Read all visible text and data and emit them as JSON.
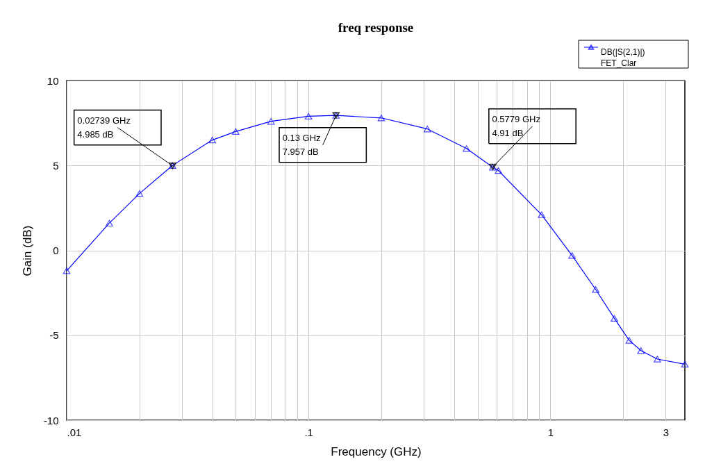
{
  "chart_data": {
    "type": "line",
    "title": "freq response",
    "xlabel": "Frequency (GHz)",
    "ylabel": "Gain (dB)",
    "series": [
      {
        "name": "DB(|S(2,1)|)\nFET_Clar",
        "color": "#0000ff",
        "marker": "triangle",
        "x": [
          0.01,
          0.015,
          0.02,
          0.02739,
          0.04,
          0.05,
          0.07,
          0.1,
          0.13,
          0.2,
          0.31,
          0.45,
          0.5779,
          0.61,
          0.92,
          1.23,
          1.54,
          1.84,
          2.12,
          2.37,
          2.77,
          3.6
        ],
        "values": [
          -1.2,
          1.6,
          3.35,
          5.0,
          6.5,
          7.0,
          7.6,
          7.9,
          7.95,
          7.8,
          7.15,
          6.0,
          4.9,
          4.7,
          2.1,
          -0.3,
          -2.3,
          -4.0,
          -5.3,
          -5.9,
          -6.4,
          -6.7
        ]
      }
    ],
    "annotations": [
      {
        "text": "0.02739 GHz\n4.985 dB",
        "x": 0.02739,
        "y": 4.985
      },
      {
        "text": "0.13 GHz\n7.957 dB",
        "x": 0.13,
        "y": 7.957
      },
      {
        "text": "0.5779 GHz\n4.91 dB",
        "x": 0.5779,
        "y": 4.91
      }
    ],
    "log": "x",
    "xlim": [
      0.01,
      3.6
    ],
    "ylim": [
      -10,
      10
    ],
    "xticks": [
      {
        "value": 0.01,
        "label": ".01"
      },
      {
        "value": 0.02,
        "label": null
      },
      {
        "value": 0.03,
        "label": null
      },
      {
        "value": 0.04,
        "label": null
      },
      {
        "value": 0.05,
        "label": null
      },
      {
        "value": 0.06,
        "label": null
      },
      {
        "value": 0.07,
        "label": null
      },
      {
        "value": 0.08,
        "label": null
      },
      {
        "value": 0.09,
        "label": null
      },
      {
        "value": 0.1,
        "label": ".1"
      },
      {
        "value": 0.2,
        "label": null
      },
      {
        "value": 0.3,
        "label": null
      },
      {
        "value": 0.4,
        "label": null
      },
      {
        "value": 0.5,
        "label": null
      },
      {
        "value": 0.6,
        "label": null
      },
      {
        "value": 0.7,
        "label": null
      },
      {
        "value": 0.8,
        "label": null
      },
      {
        "value": 0.9,
        "label": null
      },
      {
        "value": 1,
        "label": "1"
      },
      {
        "value": 2,
        "label": null
      },
      {
        "value": 3,
        "label": "3"
      }
    ],
    "yticks": [
      -10,
      -5,
      0,
      5,
      10
    ],
    "grid": true,
    "legend": "top right"
  }
}
